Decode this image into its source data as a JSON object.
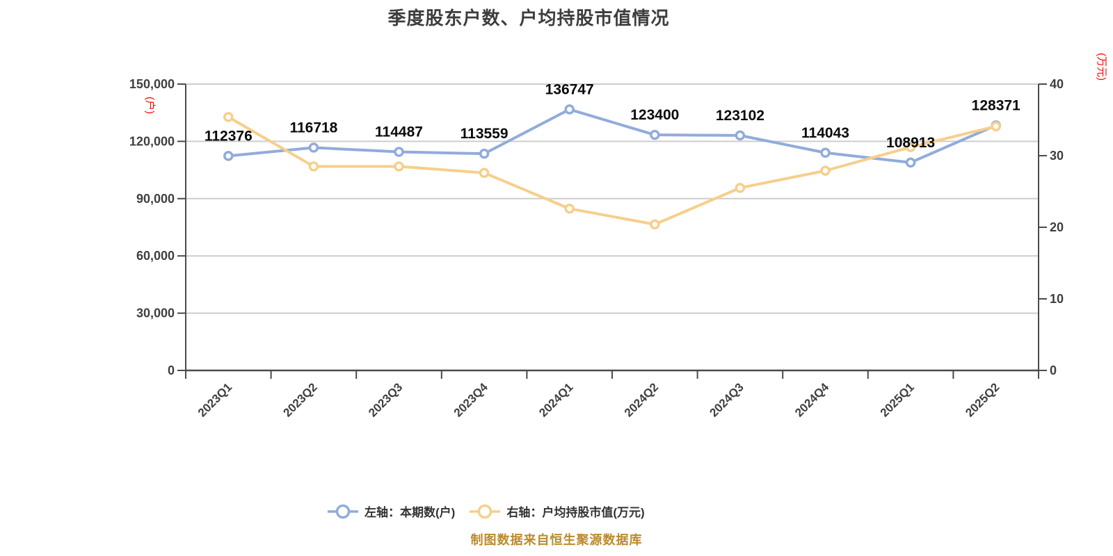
{
  "colors": {
    "background": "#FFFFFF",
    "blue_series": "#91ABDB",
    "yellow_series": "#F6CF8B",
    "title_text": "#3D3D3D",
    "axis_text": "#3F3F3F",
    "data_label_text": "#0A0A0A",
    "grid_line": "#CDCDCD",
    "axis_line": "#4A4A4A",
    "unit_text": "#FF0000",
    "source_note_text": "#BB8A2D",
    "marker_fill": "#FFFFFF"
  },
  "chart_data": {
    "type": "line",
    "title": "季度股东户数、户均持股市值情况",
    "source_note": "制图数据来自恒生聚源数据库",
    "categories": [
      "2023Q1",
      "2023Q2",
      "2023Q3",
      "2023Q4",
      "2024Q1",
      "2024Q2",
      "2024Q3",
      "2024Q4",
      "2025Q1",
      "2025Q2"
    ],
    "series": [
      {
        "name": "左轴：本期数(户)",
        "axis": "left",
        "color": "#91ABDB",
        "show_labels": true,
        "values": [
          112376,
          116718,
          114487,
          113559,
          136747,
          123400,
          123102,
          114043,
          108913,
          128371
        ]
      },
      {
        "name": "右轴：户均持股市值(万元)",
        "axis": "right",
        "color": "#F6CF8B",
        "show_labels": false,
        "values": [
          35.4,
          28.5,
          28.5,
          27.6,
          22.6,
          20.4,
          25.5,
          27.9,
          31.2,
          34.1
        ]
      }
    ],
    "left_axis": {
      "unit": "(户)",
      "min": 0,
      "max": 150000,
      "tick_values": [
        150000,
        120000,
        90000,
        60000,
        30000,
        0
      ],
      "tick_labels": [
        "150,000",
        "120,000",
        "90,000",
        "60,000",
        "30,000",
        "0"
      ]
    },
    "right_axis": {
      "unit": "(万元)",
      "min": 0,
      "max": 40,
      "tick_values": [
        40,
        30,
        20,
        10,
        0
      ],
      "tick_labels": [
        "40",
        "30",
        "20",
        "10",
        "0"
      ]
    },
    "grid": "on",
    "legend_position": "bottom"
  }
}
